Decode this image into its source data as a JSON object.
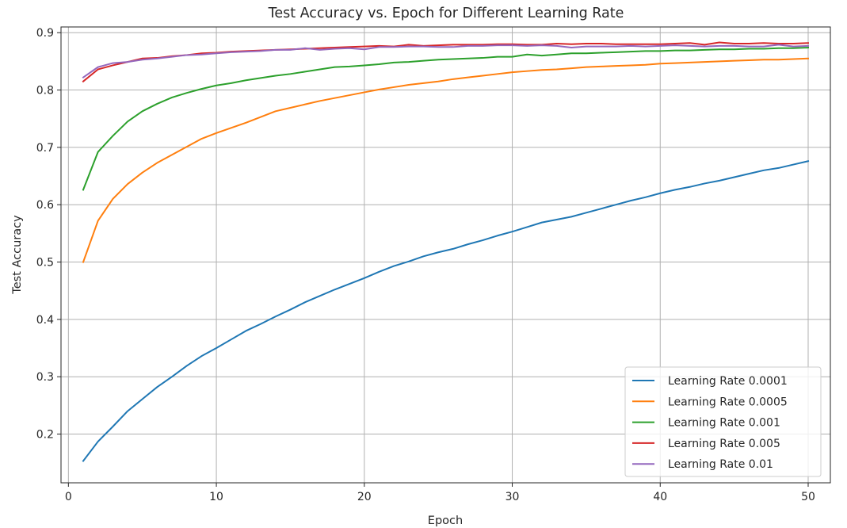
{
  "chart_data": {
    "type": "line",
    "title": "Test Accuracy vs. Epoch for Different Learning Rate",
    "xlabel": "Epoch",
    "ylabel": "Test Accuracy",
    "xlim": [
      -0.5,
      51.5
    ],
    "ylim": [
      0.115,
      0.91
    ],
    "xticks": [
      0,
      10,
      20,
      30,
      40,
      50
    ],
    "yticks": [
      0.2,
      0.3,
      0.4,
      0.5,
      0.6,
      0.7,
      0.8,
      0.9
    ],
    "xtick_labels": [
      "0",
      "10",
      "20",
      "30",
      "40",
      "50"
    ],
    "ytick_labels": [
      "0.2",
      "0.3",
      "0.4",
      "0.5",
      "0.6",
      "0.7",
      "0.8",
      "0.9"
    ],
    "grid": true,
    "legend_position": "bottom-right",
    "x": [
      1,
      2,
      3,
      4,
      5,
      6,
      7,
      8,
      9,
      10,
      11,
      12,
      13,
      14,
      15,
      16,
      17,
      18,
      19,
      20,
      21,
      22,
      23,
      24,
      25,
      26,
      27,
      28,
      29,
      30,
      31,
      32,
      33,
      34,
      35,
      36,
      37,
      38,
      39,
      40,
      41,
      42,
      43,
      44,
      45,
      46,
      47,
      48,
      49,
      50
    ],
    "series": [
      {
        "name": "Learning Rate 0.0001",
        "color": "#1f77b4",
        "values": [
          0.153,
          0.187,
          0.213,
          0.24,
          0.261,
          0.282,
          0.3,
          0.319,
          0.336,
          0.35,
          0.365,
          0.38,
          0.392,
          0.405,
          0.417,
          0.43,
          0.441,
          0.452,
          0.462,
          0.472,
          0.483,
          0.493,
          0.501,
          0.51,
          0.517,
          0.523,
          0.531,
          0.538,
          0.546,
          0.553,
          0.561,
          0.569,
          0.574,
          0.579,
          0.586,
          0.593,
          0.6,
          0.607,
          0.613,
          0.62,
          0.626,
          0.631,
          0.637,
          0.642,
          0.648,
          0.654,
          0.66,
          0.664,
          0.67,
          0.676
        ]
      },
      {
        "name": "Learning Rate 0.0005",
        "color": "#ff7f0e",
        "values": [
          0.5,
          0.572,
          0.61,
          0.636,
          0.656,
          0.673,
          0.687,
          0.701,
          0.715,
          0.725,
          0.734,
          0.743,
          0.753,
          0.763,
          0.769,
          0.775,
          0.781,
          0.786,
          0.791,
          0.796,
          0.801,
          0.805,
          0.809,
          0.812,
          0.815,
          0.819,
          0.822,
          0.825,
          0.828,
          0.831,
          0.833,
          0.835,
          0.836,
          0.838,
          0.84,
          0.841,
          0.842,
          0.843,
          0.844,
          0.846,
          0.847,
          0.848,
          0.849,
          0.85,
          0.851,
          0.852,
          0.853,
          0.853,
          0.854,
          0.855
        ]
      },
      {
        "name": "Learning Rate 0.001",
        "color": "#2ca02c",
        "values": [
          0.626,
          0.692,
          0.72,
          0.745,
          0.763,
          0.776,
          0.787,
          0.795,
          0.802,
          0.808,
          0.812,
          0.817,
          0.821,
          0.825,
          0.828,
          0.832,
          0.836,
          0.84,
          0.841,
          0.843,
          0.845,
          0.848,
          0.849,
          0.851,
          0.853,
          0.854,
          0.855,
          0.856,
          0.858,
          0.858,
          0.862,
          0.86,
          0.862,
          0.864,
          0.864,
          0.865,
          0.866,
          0.867,
          0.868,
          0.868,
          0.869,
          0.869,
          0.87,
          0.871,
          0.871,
          0.872,
          0.872,
          0.873,
          0.873,
          0.874
        ]
      },
      {
        "name": "Learning Rate 0.005",
        "color": "#d62728",
        "values": [
          0.815,
          0.836,
          0.843,
          0.849,
          0.855,
          0.856,
          0.859,
          0.861,
          0.864,
          0.865,
          0.867,
          0.868,
          0.869,
          0.87,
          0.871,
          0.872,
          0.873,
          0.874,
          0.875,
          0.876,
          0.877,
          0.876,
          0.879,
          0.877,
          0.878,
          0.879,
          0.879,
          0.879,
          0.88,
          0.88,
          0.879,
          0.879,
          0.881,
          0.88,
          0.881,
          0.881,
          0.88,
          0.88,
          0.88,
          0.88,
          0.881,
          0.882,
          0.879,
          0.883,
          0.881,
          0.881,
          0.882,
          0.881,
          0.881,
          0.882
        ]
      },
      {
        "name": "Learning Rate 0.01",
        "color": "#9467bd",
        "values": [
          0.822,
          0.84,
          0.847,
          0.849,
          0.853,
          0.855,
          0.858,
          0.861,
          0.862,
          0.864,
          0.866,
          0.867,
          0.868,
          0.87,
          0.87,
          0.873,
          0.87,
          0.872,
          0.873,
          0.871,
          0.875,
          0.875,
          0.876,
          0.876,
          0.875,
          0.875,
          0.877,
          0.877,
          0.878,
          0.878,
          0.877,
          0.878,
          0.877,
          0.874,
          0.876,
          0.876,
          0.876,
          0.877,
          0.876,
          0.877,
          0.878,
          0.877,
          0.876,
          0.877,
          0.877,
          0.876,
          0.876,
          0.879,
          0.876,
          0.877
        ]
      }
    ]
  }
}
